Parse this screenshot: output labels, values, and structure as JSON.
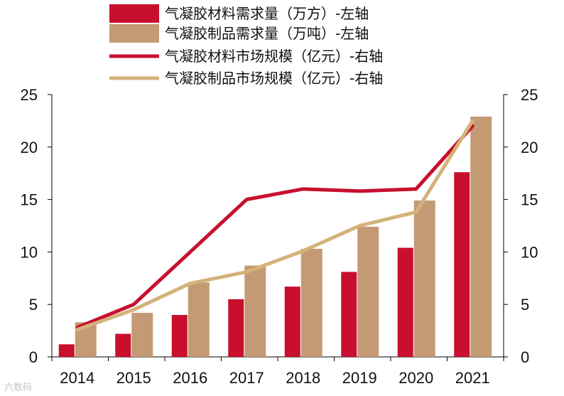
{
  "chart_data": {
    "type": "bar",
    "categories": [
      "2014",
      "2015",
      "2016",
      "2017",
      "2018",
      "2019",
      "2020",
      "2021"
    ],
    "series": [
      {
        "name": "气凝胶材料需求量（万方）-左轴",
        "kind": "bar",
        "axis": "left",
        "color": "#c8102e",
        "values": [
          1.2,
          2.2,
          4.0,
          5.5,
          6.7,
          8.1,
          10.4,
          17.6
        ]
      },
      {
        "name": "气凝胶制品需求量（万吨）-左轴",
        "kind": "bar",
        "axis": "left",
        "color": "#c49a74",
        "values": [
          3.3,
          4.2,
          7.1,
          8.7,
          10.3,
          12.4,
          14.9,
          22.9
        ]
      },
      {
        "name": "气凝胶材料市场规模（亿元）-右轴",
        "kind": "line",
        "axis": "right",
        "color": "#c8102e",
        "values": [
          2.8,
          5.0,
          10.0,
          15.0,
          16.0,
          15.8,
          16.0,
          22.0
        ]
      },
      {
        "name": "气凝胶制品市场规模（亿元）-右轴",
        "kind": "line",
        "axis": "right",
        "color": "#d4b27a",
        "values": [
          2.6,
          4.5,
          7.0,
          8.1,
          10.1,
          12.5,
          13.8,
          22.5
        ]
      }
    ],
    "ylim": [
      0,
      25
    ],
    "y2lim": [
      0,
      25
    ],
    "yticks": [
      "0",
      "5",
      "10",
      "15",
      "20",
      "25"
    ],
    "y2ticks": [
      "0",
      "5",
      "10",
      "15",
      "20",
      "25"
    ],
    "grid": false,
    "legend": "top-center"
  },
  "watermark": "六数码"
}
